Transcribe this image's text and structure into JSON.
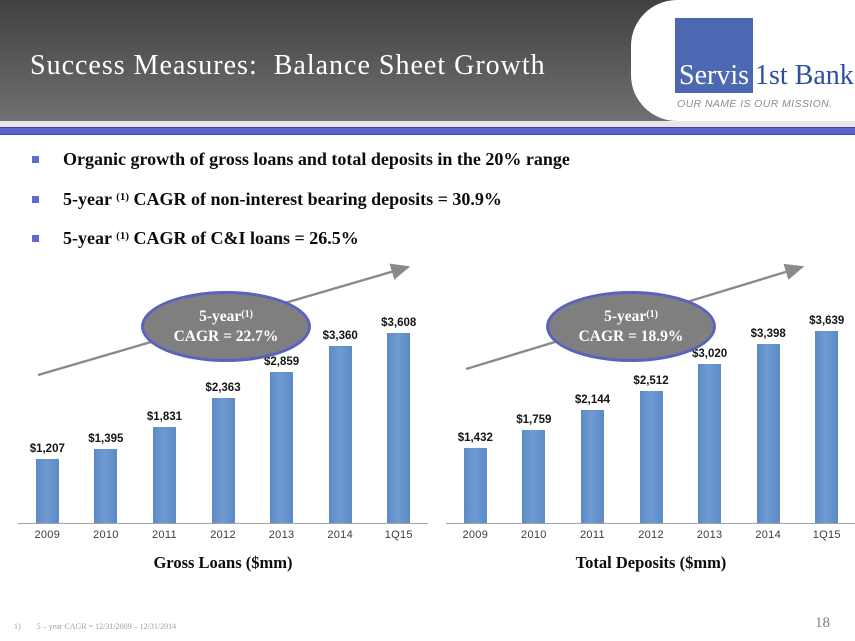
{
  "header": {
    "title": "Success Measures:  Balance Sheet Growth"
  },
  "logo": {
    "name_blue_box": "Servis",
    "name_rest": "1st Bank",
    "tagline": "OUR NAME IS OUR MISSION.",
    "square_color": "#4d68b2",
    "text_color": "#2f4e9c"
  },
  "bullets": [
    {
      "pre": "Organic growth of gross loans and total deposits in the 20% range",
      "sup": "",
      "post": ""
    },
    {
      "pre": "5-year ",
      "sup": "(1)",
      "post": " CAGR of non-interest bearing deposits = 30.9%"
    },
    {
      "pre": "5-year ",
      "sup": "(1)",
      "post": " CAGR of C&I loans = 26.5%"
    }
  ],
  "chart_data": [
    {
      "type": "bar",
      "title": "Gross Loans ($mm)",
      "categories": [
        "2009",
        "2010",
        "2011",
        "2012",
        "2013",
        "2014",
        "1Q15"
      ],
      "values": [
        1207,
        1395,
        1831,
        2363,
        2859,
        3360,
        3608
      ],
      "labels": [
        "$1,207",
        "$1,395",
        "$1,831",
        "$2,363",
        "$2,859",
        "$3,360",
        "$3,608"
      ],
      "annotation": {
        "line1": "5-year",
        "sup": "(1)",
        "line2": "CAGR = 22.7%"
      },
      "bar_color": "#5b8ac5",
      "ylim": [
        0,
        3900
      ],
      "grid": false,
      "legend": "none"
    },
    {
      "type": "bar",
      "title": "Total Deposits ($mm)",
      "categories": [
        "2009",
        "2010",
        "2011",
        "2012",
        "2013",
        "2014",
        "1Q15"
      ],
      "values": [
        1432,
        1759,
        2144,
        2512,
        3020,
        3398,
        3639
      ],
      "labels": [
        "$1,432",
        "$1,759",
        "$2,144",
        "$2,512",
        "$3,020",
        "$3,398",
        "$3,639"
      ],
      "annotation": {
        "line1": "5-year",
        "sup": "(1)",
        "line2": "CAGR = 18.9%"
      },
      "bar_color": "#5b8ac5",
      "ylim": [
        0,
        3900
      ],
      "grid": false,
      "legend": "none"
    }
  ],
  "footnote": {
    "marker": "1)",
    "text": "5 – year CAGR = 12/31/2009 – 12/31/2014"
  },
  "page_number": "18",
  "colors": {
    "accent_rule_blue": "#5a64cb",
    "bullet_square": "#5d6bd0",
    "ellipse_fill": "#7f7f7f",
    "ellipse_border": "#5a62c0",
    "arrow_gray": "#8a8a8a",
    "header_dark": "#4f4f4f"
  }
}
